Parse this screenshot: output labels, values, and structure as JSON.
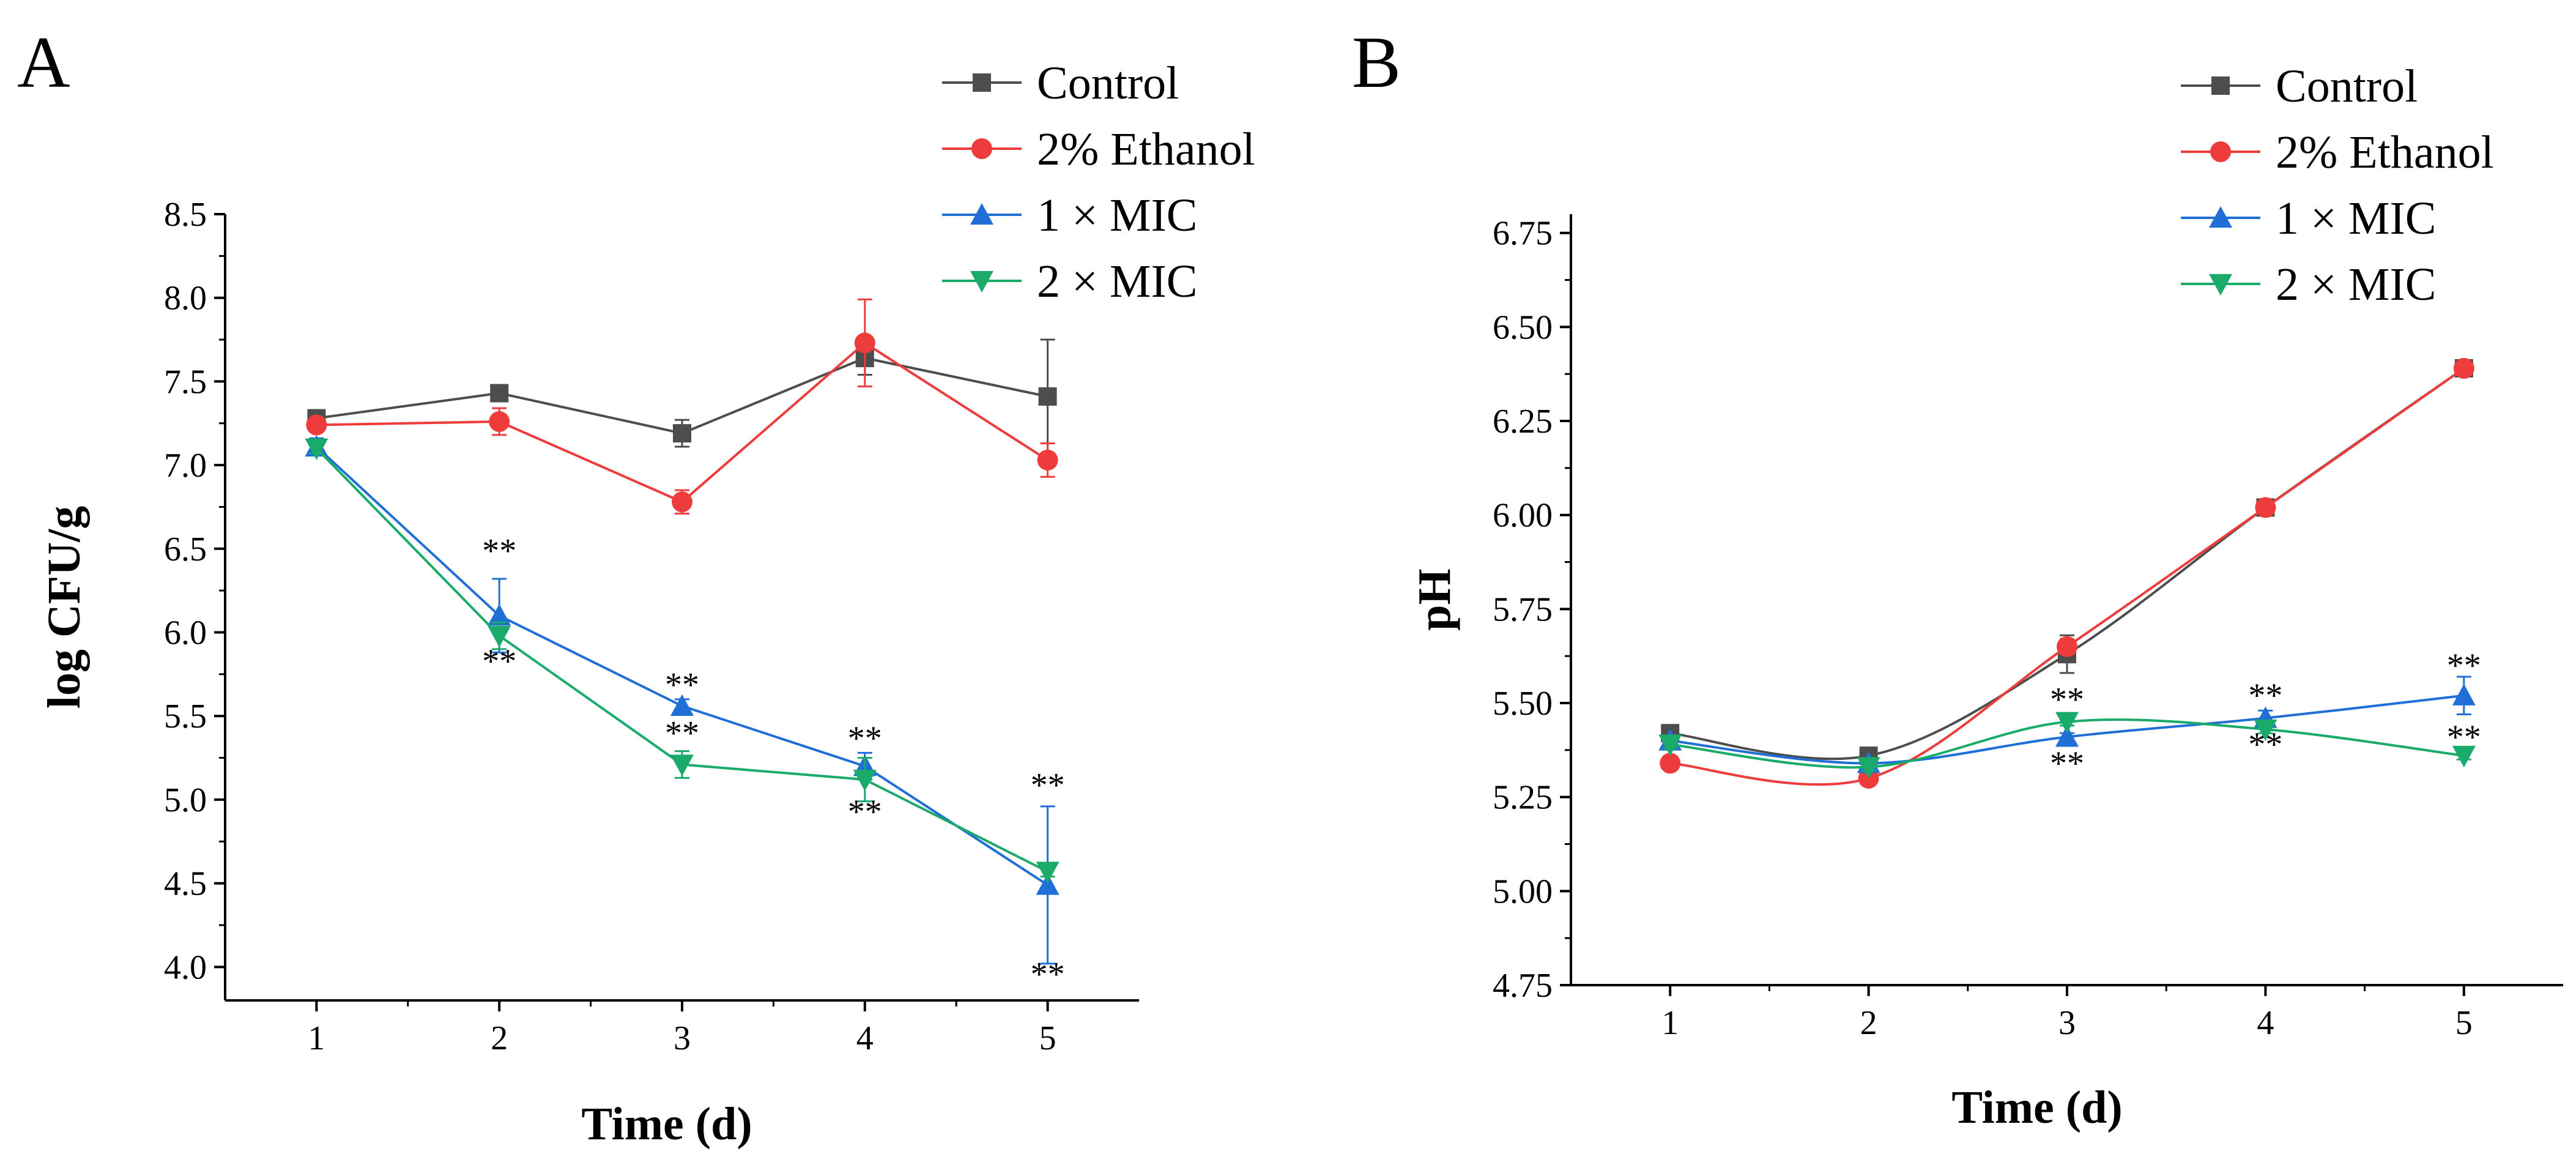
{
  "colors": {
    "Control": "#4d4d4d",
    "2% Ethanol": "#ee3b3b",
    "1 × MIC": "#1f6fd6",
    "2 × MIC": "#1aaa6a"
  },
  "legend": {
    "items": [
      "Control",
      "2% Ethanol",
      "1 × MIC",
      "2 × MIC"
    ]
  },
  "chart_data": [
    {
      "type": "line",
      "panel": "A",
      "xlabel": "Time (d)",
      "ylabel": "log CFU/g",
      "x": [
        1,
        2,
        3,
        4,
        5
      ],
      "xticks": [
        "1",
        "2",
        "3",
        "4",
        "5"
      ],
      "yticks": [
        "4.0",
        "4.5",
        "5.0",
        "5.5",
        "6.0",
        "6.5",
        "7.0",
        "7.5",
        "8.0",
        "8.5"
      ],
      "ylim": [
        3.8,
        8.5
      ],
      "xlim": [
        0.5,
        5.5
      ],
      "smooth": false,
      "series": [
        {
          "name": "Control",
          "marker": "square",
          "values": [
            7.28,
            7.43,
            7.19,
            7.64,
            7.41
          ],
          "errors": [
            0.03,
            0.03,
            0.08,
            0.1,
            0.34
          ]
        },
        {
          "name": "2% Ethanol",
          "marker": "circle",
          "values": [
            7.24,
            7.26,
            6.78,
            7.73,
            7.03
          ],
          "errors": [
            0.03,
            0.08,
            0.07,
            0.26,
            0.1
          ]
        },
        {
          "name": "1 × MIC",
          "marker": "triangle-up",
          "values": [
            7.11,
            6.1,
            5.56,
            5.2,
            4.49
          ],
          "errors": [
            0.05,
            0.22,
            0.04,
            0.08,
            0.47
          ]
        },
        {
          "name": "2 × MIC",
          "marker": "triangle-down",
          "values": [
            7.1,
            5.98,
            5.21,
            5.12,
            4.57
          ],
          "errors": [
            0.03,
            0.08,
            0.08,
            0.13,
            0.03
          ]
        }
      ],
      "annotations": [
        {
          "text": "**",
          "x": 2,
          "y": 6.42
        },
        {
          "text": "**",
          "x": 2,
          "y": 5.76
        },
        {
          "text": "**",
          "x": 3,
          "y": 5.62
        },
        {
          "text": "**",
          "x": 3,
          "y": 5.33
        },
        {
          "text": "**",
          "x": 4,
          "y": 5.3
        },
        {
          "text": "**",
          "x": 4,
          "y": 4.86
        },
        {
          "text": "**",
          "x": 5,
          "y": 5.02
        },
        {
          "text": "**",
          "x": 5,
          "y": 3.89
        }
      ]
    },
    {
      "type": "line",
      "panel": "B",
      "xlabel": "Time (d)",
      "ylabel": "pH",
      "x": [
        1,
        2,
        3,
        4,
        5
      ],
      "xticks": [
        "1",
        "2",
        "3",
        "4",
        "5"
      ],
      "yticks": [
        "4.75",
        "5.00",
        "5.25",
        "5.50",
        "5.75",
        "6.00",
        "6.25",
        "6.50",
        "6.75"
      ],
      "ylim": [
        4.75,
        6.8
      ],
      "xlim": [
        0.5,
        5.5
      ],
      "smooth": true,
      "series": [
        {
          "name": "Control",
          "marker": "square",
          "values": [
            5.42,
            5.36,
            5.63,
            6.02,
            6.39
          ],
          "errors": [
            0.01,
            0.01,
            0.05,
            0.01,
            0.01
          ]
        },
        {
          "name": "2% Ethanol",
          "marker": "circle",
          "values": [
            5.34,
            5.3,
            5.65,
            6.02,
            6.39
          ],
          "errors": [
            0.01,
            0.01,
            0.02,
            0.01,
            0.01
          ]
        },
        {
          "name": "1 × MIC",
          "marker": "triangle-up",
          "values": [
            5.4,
            5.34,
            5.41,
            5.46,
            5.52
          ],
          "errors": [
            0.01,
            0.01,
            0.01,
            0.02,
            0.05
          ]
        },
        {
          "name": "2 × MIC",
          "marker": "triangle-down",
          "values": [
            5.39,
            5.33,
            5.45,
            5.43,
            5.36
          ],
          "errors": [
            0.01,
            0.01,
            0.01,
            0.01,
            0.01
          ]
        }
      ],
      "annotations": [
        {
          "text": "**",
          "x": 3,
          "y": 5.48
        },
        {
          "text": "**",
          "x": 3,
          "y": 5.31
        },
        {
          "text": "**",
          "x": 4,
          "y": 5.49
        },
        {
          "text": "**",
          "x": 4,
          "y": 5.36
        },
        {
          "text": "**",
          "x": 5,
          "y": 5.57
        },
        {
          "text": "**",
          "x": 5,
          "y": 5.38
        }
      ]
    }
  ]
}
